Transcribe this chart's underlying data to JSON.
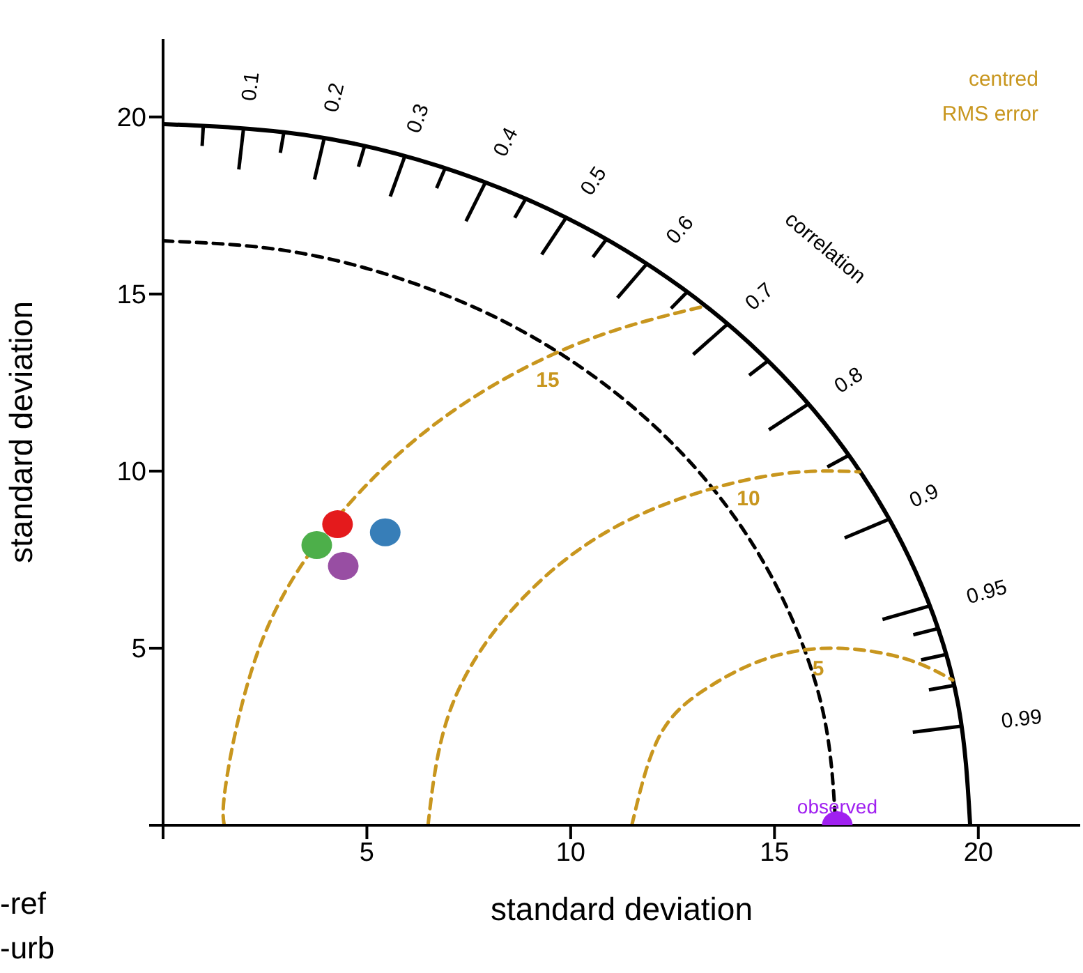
{
  "chart_data": {
    "type": "scatter",
    "xlabel": "standard deviation",
    "ylabel": "standard deviation",
    "xlim": [
      0,
      22.5
    ],
    "ylim": [
      0,
      22.2
    ],
    "xticks": [
      {
        "value": 0,
        "label": null
      },
      5,
      10,
      15,
      20
    ],
    "yticks": [
      {
        "value": 0,
        "label": null
      },
      5,
      10,
      15,
      20
    ],
    "marker": "circle",
    "series": [
      {
        "type": "line",
        "marker": "none",
        "color": "#000000",
        "line_style": "solid",
        "x": [
          0,
          3.44,
          6.77,
          9.9,
          12.73,
          15.17,
          17.15,
          18.61,
          19.5,
          19.8
        ],
        "values": [
          19.8,
          19.5,
          18.61,
          17.15,
          15.17,
          12.73,
          9.9,
          6.77,
          3.44,
          0
        ]
      },
      {
        "type": "line",
        "marker": "none",
        "color": "#000000",
        "line_style": "dashed",
        "x": [
          0,
          2.87,
          5.64,
          8.25,
          10.61,
          12.64,
          14.29,
          15.5,
          16.25,
          16.5
        ],
        "values": [
          16.5,
          16.25,
          15.5,
          14.29,
          12.64,
          10.61,
          8.25,
          5.64,
          2.87,
          0
        ]
      },
      {
        "type": "line",
        "marker": "none",
        "color": "#c8961e",
        "line_style": "dashed",
        "x": [
          11.5,
          12.17,
          13.29,
          14.79,
          16.5,
          18.21,
          19.37
        ],
        "values": [
          0,
          2.5,
          3.83,
          4.7,
          5,
          4.7,
          4.1
        ]
      },
      {
        "type": "line",
        "marker": "none",
        "color": "#c8961e",
        "line_style": "dashed",
        "x": [
          6.5,
          7.1,
          8.84,
          11.5,
          14.76,
          17.09
        ],
        "values": [
          0,
          3.42,
          6.43,
          8.66,
          9.85,
          9.98
        ]
      },
      {
        "type": "line",
        "marker": "none",
        "color": "#c8961e",
        "line_style": "dashed",
        "x": [
          1.5,
          1.56,
          2.4,
          4.21,
          6.86,
          10.16,
          13.3
        ],
        "values": [
          0,
          1.31,
          5.13,
          8.6,
          11.49,
          13.59,
          14.66
        ]
      },
      {
        "color": "#e41a1c",
        "x": [
          4.28
        ],
        "values": [
          8.5
        ]
      },
      {
        "color": "#377eb8",
        "x": [
          5.45
        ],
        "values": [
          8.27
        ]
      },
      {
        "color": "#4daf4a",
        "x": [
          3.77
        ],
        "values": [
          7.91
        ]
      },
      {
        "color": "#984ea3",
        "x": [
          4.42
        ],
        "values": [
          7.32
        ]
      },
      {
        "name": "observed",
        "color": "#a020f0",
        "x": [
          16.54
        ],
        "values": [
          0
        ]
      }
    ],
    "annotations": [
      "centred",
      "RMS error",
      "correlation",
      "-ref",
      "-urb",
      "15",
      "10",
      "5",
      "0.1",
      "0.2",
      "0.3",
      "0.4",
      "0.5",
      "0.6",
      "0.7",
      "0.8",
      "0.9",
      "0.95",
      "0.99"
    ]
  }
}
